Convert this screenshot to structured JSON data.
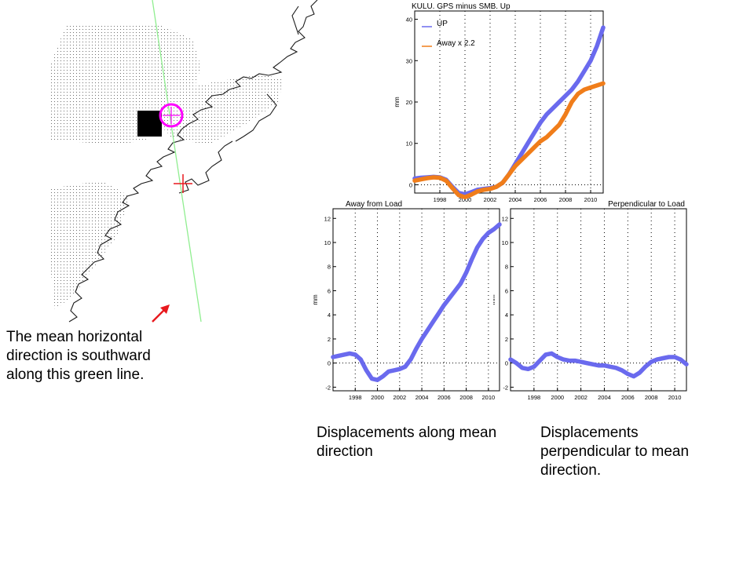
{
  "colors": {
    "up": "#6a6aee",
    "away": "#f07d1a",
    "green_line": "#90ee90",
    "marker": "#ff00ff",
    "arrow": "#e8191e"
  },
  "map": {
    "icons": [
      "coastline-outline",
      "ice-sheet-stipple",
      "load-square",
      "station-circle-marker",
      "red-cross-marker",
      "green-direction-line"
    ]
  },
  "captions": {
    "map_note": "The mean horizontal direction is southward along this green line.",
    "along": "Displacements along mean direction",
    "perp": "Displacements perpendicular to mean direction."
  },
  "chart_data": [
    {
      "id": "up",
      "type": "line",
      "title": "KULU.  GPS minus SMB. Up",
      "ylabel": "mm",
      "xlim": [
        1996,
        2011
      ],
      "ylim": [
        -2,
        42
      ],
      "xticks": [
        1998,
        2000,
        2002,
        2004,
        2006,
        2008,
        2010
      ],
      "yticks": [
        0,
        10,
        20,
        30,
        40
      ],
      "grid": "dotted-vertical",
      "legend": "top-left",
      "series": [
        {
          "name": "UP",
          "color": "#6a6aee",
          "x": [
            1996,
            1996.5,
            1997,
            1997.5,
            1998,
            1998.5,
            1999,
            1999.5,
            2000,
            2000.5,
            2001,
            2001.5,
            2002,
            2002.5,
            2003,
            2003.5,
            2004,
            2004.5,
            2005,
            2005.5,
            2006,
            2006.5,
            2007,
            2007.5,
            2008,
            2008.5,
            2009,
            2009.5,
            2010,
            2010.5,
            2011
          ],
          "y": [
            1.5,
            1.7,
            1.8,
            1.9,
            1.8,
            1.2,
            -0.5,
            -2.0,
            -2.3,
            -1.8,
            -1.2,
            -1.0,
            -0.8,
            -0.5,
            0.5,
            2.5,
            5.0,
            7.5,
            10.0,
            12.5,
            15.0,
            17.0,
            18.5,
            20.0,
            21.5,
            23.0,
            25.0,
            27.5,
            30.0,
            33.5,
            38.0
          ]
        },
        {
          "name": "Away x 2.2",
          "color": "#f07d1a",
          "x": [
            1996,
            1996.5,
            1997,
            1997.5,
            1998,
            1998.5,
            1999,
            1999.5,
            2000,
            2000.5,
            2001,
            2001.5,
            2002,
            2002.5,
            2003,
            2003.5,
            2004,
            2004.5,
            2005,
            2005.5,
            2006,
            2006.5,
            2007,
            2007.5,
            2008,
            2008.5,
            2009,
            2009.5,
            2010,
            2010.5,
            2011
          ],
          "y": [
            1.0,
            1.3,
            1.6,
            1.8,
            1.7,
            1.0,
            -0.8,
            -2.5,
            -3.0,
            -2.4,
            -1.6,
            -1.2,
            -1.0,
            -0.5,
            0.5,
            2.5,
            4.5,
            6.0,
            7.5,
            9.0,
            10.5,
            11.5,
            13.0,
            14.5,
            17.0,
            20.0,
            22.0,
            23.0,
            23.5,
            24.0,
            24.5
          ]
        }
      ]
    },
    {
      "id": "along",
      "type": "line",
      "title": "Away from Load",
      "ylabel": "mm",
      "xlim": [
        1996,
        2011
      ],
      "ylim": [
        -2.3,
        12.8
      ],
      "xticks": [
        1998,
        2000,
        2002,
        2004,
        2006,
        2008,
        2010
      ],
      "yticks": [
        -2,
        0,
        2,
        4,
        6,
        8,
        10,
        12
      ],
      "grid": "dotted-vertical",
      "series": [
        {
          "color": "#6a6aee",
          "x": [
            1996,
            1996.5,
            1997,
            1997.5,
            1998,
            1998.5,
            1999,
            1999.5,
            2000,
            2000.5,
            2001,
            2001.5,
            2002,
            2002.5,
            2003,
            2003.5,
            2004,
            2004.5,
            2005,
            2005.5,
            2006,
            2006.5,
            2007,
            2007.5,
            2008,
            2008.5,
            2009,
            2009.5,
            2010,
            2010.5,
            2011
          ],
          "y": [
            0.5,
            0.6,
            0.7,
            0.8,
            0.7,
            0.3,
            -0.6,
            -1.3,
            -1.4,
            -1.1,
            -0.7,
            -0.6,
            -0.5,
            -0.3,
            0.3,
            1.2,
            2.0,
            2.7,
            3.4,
            4.1,
            4.8,
            5.4,
            6.0,
            6.6,
            7.5,
            8.6,
            9.6,
            10.3,
            10.8,
            11.1,
            11.5
          ]
        }
      ]
    },
    {
      "id": "perp",
      "type": "line",
      "title": "Perpendicular to Load",
      "ylabel": "mm",
      "xlim": [
        1996,
        2011
      ],
      "ylim": [
        -2.3,
        12.8
      ],
      "xticks": [
        1998,
        2000,
        2002,
        2004,
        2006,
        2008,
        2010
      ],
      "yticks": [
        -2,
        0,
        2,
        4,
        6,
        8,
        10,
        12
      ],
      "grid": "dotted-vertical",
      "series": [
        {
          "color": "#6a6aee",
          "x": [
            1996,
            1996.5,
            1997,
            1997.5,
            1998,
            1998.5,
            1999,
            1999.5,
            2000,
            2000.5,
            2001,
            2001.5,
            2002,
            2002.5,
            2003,
            2003.5,
            2004,
            2004.5,
            2005,
            2005.5,
            2006,
            2006.5,
            2007,
            2007.5,
            2008,
            2008.5,
            2009,
            2009.5,
            2010,
            2010.5,
            2011
          ],
          "y": [
            0.3,
            0.0,
            -0.4,
            -0.5,
            -0.3,
            0.2,
            0.7,
            0.8,
            0.5,
            0.3,
            0.2,
            0.2,
            0.1,
            0.0,
            -0.1,
            -0.2,
            -0.2,
            -0.3,
            -0.4,
            -0.6,
            -0.9,
            -1.1,
            -0.8,
            -0.3,
            0.1,
            0.3,
            0.4,
            0.5,
            0.5,
            0.3,
            -0.1
          ]
        }
      ]
    }
  ]
}
